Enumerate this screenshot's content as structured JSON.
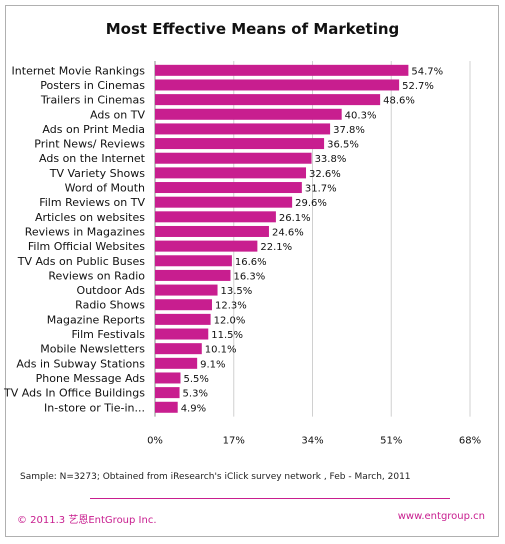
{
  "chart_data": {
    "type": "bar",
    "orientation": "horizontal",
    "title": "Most Effective Means of Marketing",
    "categories": [
      "Internet Movie Rankings",
      "Posters in Cinemas",
      "Trailers in Cinemas",
      "Ads on TV",
      "Ads on Print Media",
      "Print News/ Reviews",
      "Ads on the Internet",
      "TV Variety Shows",
      "Word of Mouth",
      "Film Reviews on TV",
      "Articles on websites",
      "Reviews in Magazines",
      "Film Official Websites",
      "TV Ads on Public Buses",
      "Reviews on Radio",
      "Outdoor Ads",
      "Radio Shows",
      "Magazine Reports",
      "Film Festivals",
      "Mobile Newsletters",
      "Ads in Subway Stations",
      "Phone Message Ads",
      "TV Ads In Office Buildings",
      "In-store or Tie-in..."
    ],
    "values": [
      54.7,
      52.7,
      48.6,
      40.3,
      37.8,
      36.5,
      33.8,
      32.6,
      31.7,
      29.6,
      26.1,
      24.6,
      22.1,
      16.6,
      16.3,
      13.5,
      12.3,
      12.0,
      11.5,
      10.1,
      9.1,
      5.5,
      5.3,
      4.9
    ],
    "value_labels": [
      "54.7%",
      "52.7%",
      "48.6%",
      "40.3%",
      "37.8%",
      "36.5%",
      "33.8%",
      "32.6%",
      "31.7%",
      "29.6%",
      "26.1%",
      "24.6%",
      "22.1%",
      "16.6%",
      "16.3%",
      "13.5%",
      "12.3%",
      "12.0%",
      "11.5%",
      "10.1%",
      "9.1%",
      "5.5%",
      "5.3%",
      "4.9%"
    ],
    "xlim": [
      0,
      68
    ],
    "xticks": [
      0,
      17,
      34,
      51,
      68
    ],
    "xtick_labels": [
      "0%",
      "17%",
      "34%",
      "51%",
      "68%"
    ],
    "grid": true,
    "bar_color": "#c81e8f"
  },
  "footer": {
    "note": "Sample: N=3273; Obtained from iResearch's iClick survey network , Feb - March, 2011",
    "copyright": "© 2011.3 艺恩EntGroup Inc.",
    "website": "www.entgroup.cn"
  }
}
